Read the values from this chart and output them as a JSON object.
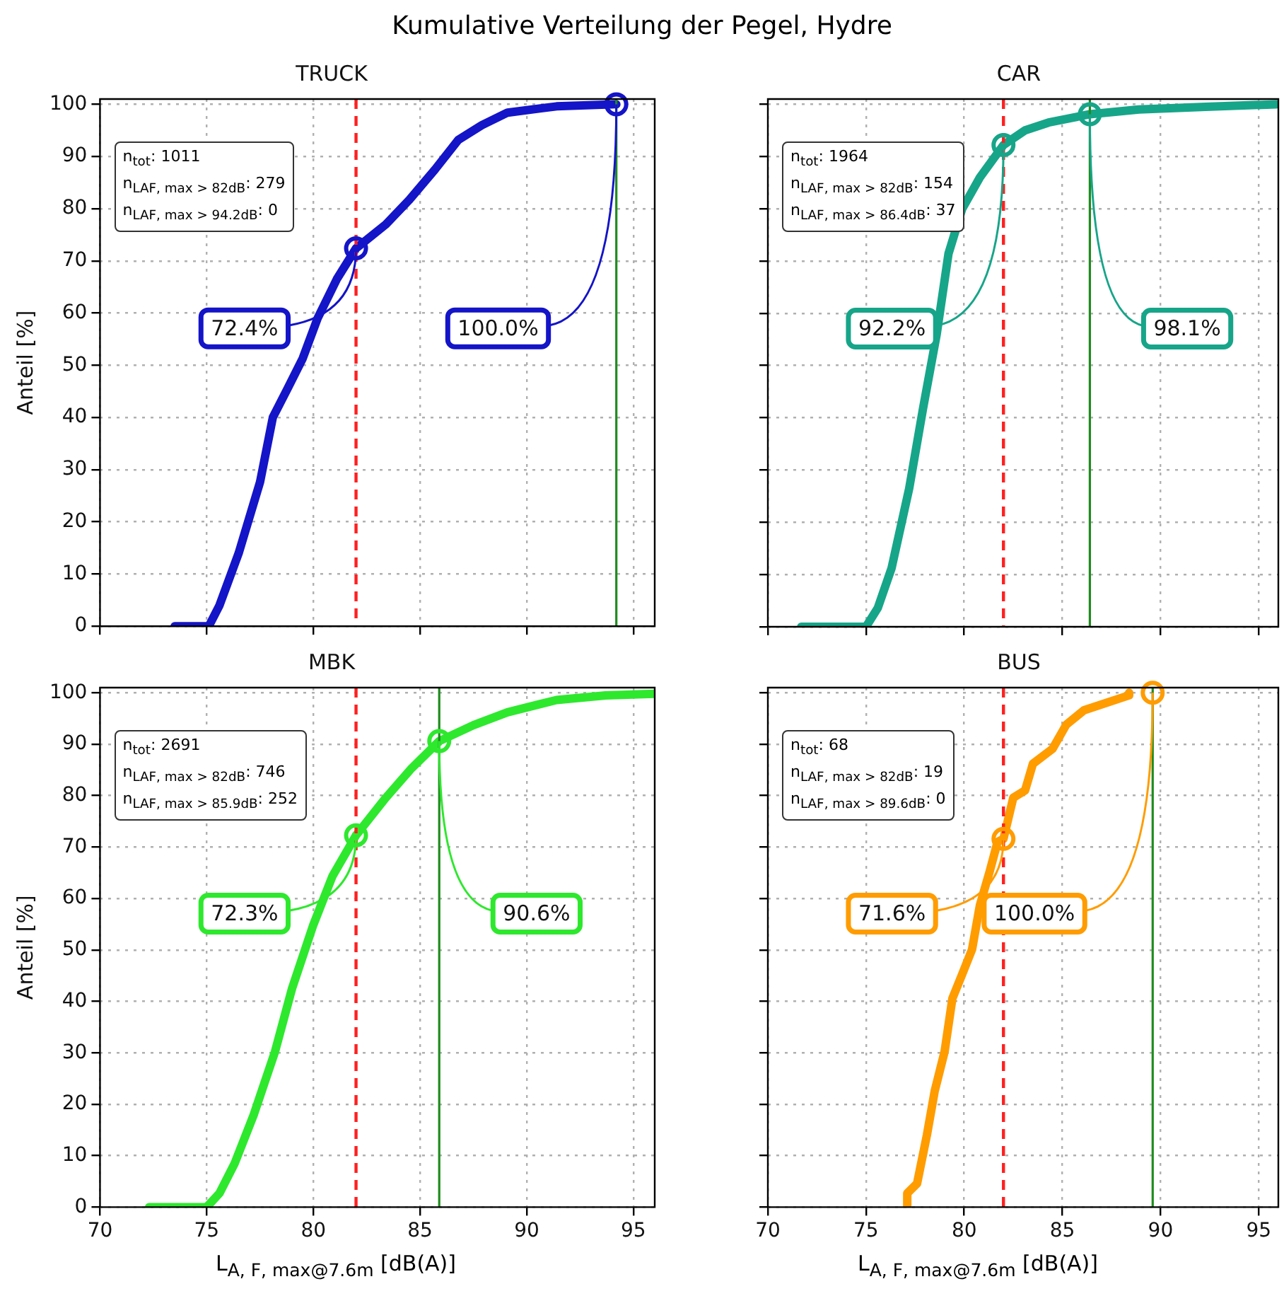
{
  "chart_data": [
    {
      "type": "line",
      "title": "Kumulative Verteilung der Pegel, Hydre",
      "subtitle": "TRUCK",
      "ylabel": "Anteil [%]",
      "xlim": [
        70,
        96
      ],
      "ylim": [
        0,
        101
      ],
      "xticks": [
        70,
        75,
        80,
        85,
        90,
        95
      ],
      "yticks": [
        0,
        10,
        20,
        30,
        40,
        50,
        60,
        70,
        80,
        90,
        100
      ],
      "grid": true,
      "tick_labels": "y",
      "series": [
        {
          "color": "#1414c8",
          "x": [
            73.5,
            75.1,
            75.6,
            76.5,
            77.5,
            78.1,
            78.8,
            79.5,
            80.2,
            81.1,
            82.0,
            83.4,
            84.5,
            85.7,
            86.8,
            87.9,
            89.1,
            91.4,
            94.2
          ],
          "values": [
            0,
            0,
            4,
            14,
            27.6,
            40,
            45.6,
            51.3,
            59,
            66.5,
            72.4,
            77,
            81.7,
            87.5,
            93.2,
            96,
            98.4,
            99.6,
            100
          ]
        }
      ],
      "ref_lines": [
        {
          "axis": "x",
          "value": 82,
          "color": "#ff2020",
          "line_style": "dashed"
        },
        {
          "axis": "x",
          "value": 94.2,
          "color": "#1f8c1f"
        }
      ],
      "annotations": [
        "n$_{tot}$: 1011",
        "n$_{LAF, max > 82dB}$: 279",
        "n$_{LAF, max > 94.2dB}$: 0",
        {
          "text": "72.4%",
          "x": 82,
          "y": 72.4
        },
        {
          "text": "100.0%",
          "x": 94.2,
          "y": 100
        }
      ]
    },
    {
      "type": "line",
      "title": "CAR",
      "xlim": [
        70,
        96
      ],
      "ylim": [
        0,
        101
      ],
      "xticks": [
        70,
        75,
        80,
        85,
        90,
        95
      ],
      "yticks": [
        0,
        10,
        20,
        30,
        40,
        50,
        60,
        70,
        80,
        90,
        100
      ],
      "grid": true,
      "tick_labels": false,
      "series": [
        {
          "color": "#17a589",
          "x": [
            71.7,
            75,
            75.6,
            76.3,
            77.2,
            77.9,
            78.6,
            79.2,
            79.9,
            80.8,
            82.0,
            83.1,
            84.3,
            86.4,
            88.9,
            92.3,
            95.9
          ],
          "values": [
            0,
            0,
            3.6,
            11.2,
            26.5,
            41.7,
            56,
            71.4,
            80,
            86,
            92.2,
            95,
            96.5,
            98.1,
            99,
            99.5,
            100
          ]
        }
      ],
      "ref_lines": [
        {
          "axis": "x",
          "value": 82,
          "color": "#ff2020",
          "line_style": "dashed"
        },
        {
          "axis": "x",
          "value": 86.4,
          "color": "#1f8c1f"
        }
      ],
      "annotations": [
        "n$_{tot}$: 1964",
        "n$_{LAF, max > 82dB}$: 154",
        "n$_{LAF, max > 86.4dB}$: 37",
        {
          "text": "92.2%",
          "x": 82,
          "y": 92.2
        },
        {
          "text": "98.1%",
          "x": 86.4,
          "y": 98.1
        }
      ]
    },
    {
      "type": "line",
      "title": "MBK",
      "xlabel": "L$_{A, F, max@7.6m}$ [dB(A)]",
      "ylabel": "Anteil [%]",
      "xlim": [
        70,
        96
      ],
      "ylim": [
        0,
        101
      ],
      "xticks": [
        70,
        75,
        80,
        85,
        90,
        95
      ],
      "yticks": [
        0,
        10,
        20,
        30,
        40,
        50,
        60,
        70,
        80,
        90,
        100
      ],
      "grid": true,
      "series": [
        {
          "color": "#2ee82e",
          "x": [
            72.3,
            75,
            75.6,
            76.3,
            77.2,
            78.2,
            79.0,
            80.0,
            80.9,
            82.0,
            83.4,
            84.6,
            85.9,
            87.5,
            89.1,
            91.4,
            93.7,
            96
          ],
          "values": [
            0,
            0,
            2.7,
            8.4,
            17.9,
            30.2,
            42.5,
            54.9,
            64.4,
            72.3,
            79.6,
            85.3,
            90.6,
            93.7,
            96.2,
            98.6,
            99.5,
            99.8
          ]
        }
      ],
      "ref_lines": [
        {
          "axis": "x",
          "value": 82,
          "color": "#ff2020",
          "line_style": "dashed"
        },
        {
          "axis": "x",
          "value": 85.9,
          "color": "#1f8c1f"
        }
      ],
      "annotations": [
        "n$_{tot}$: 2691",
        "n$_{LAF, max > 82dB}$: 746",
        "n$_{LAF, max > 85.9dB}$: 252",
        {
          "text": "72.3%",
          "x": 82,
          "y": 72.3
        },
        {
          "text": "90.6%",
          "x": 85.9,
          "y": 90.6
        }
      ]
    },
    {
      "type": "line",
      "title": "BUS",
      "xlabel": "L$_{A, F, max@7.6m}$ [dB(A)]",
      "xlim": [
        70,
        96
      ],
      "ylim": [
        0,
        101
      ],
      "xticks": [
        70,
        75,
        80,
        85,
        90,
        95
      ],
      "yticks": [
        0,
        10,
        20,
        30,
        40,
        50,
        60,
        70,
        80,
        90,
        100
      ],
      "grid": true,
      "tick_labels": "x",
      "series": [
        {
          "color": "#ff9c00",
          "x": [
            77.1,
            77.1,
            77.6,
            78.1,
            78.5,
            79.0,
            79.4,
            79.9,
            80.4,
            80.8,
            81.3,
            81.7,
            82.0,
            82.5,
            83.1,
            83.5,
            84.5,
            85.2,
            86.1,
            88.4,
            88.4
          ],
          "values": [
            0,
            2.7,
            4.6,
            14,
            22.6,
            30.2,
            40.6,
            45.3,
            50.1,
            58.7,
            65.3,
            71,
            71.6,
            79.6,
            81,
            86.2,
            89.1,
            93.8,
            96.6,
            99.5,
            100
          ]
        }
      ],
      "ref_lines": [
        {
          "axis": "x",
          "value": 82,
          "color": "#ff2020",
          "line_style": "dashed"
        },
        {
          "axis": "x",
          "value": 89.6,
          "color": "#1f8c1f"
        }
      ],
      "annotations": [
        "n$_{tot}$: 68",
        "n$_{LAF, max > 82dB}$: 19",
        "n$_{LAF, max > 89.6dB}$: 0",
        {
          "text": "71.6%",
          "x": 82,
          "y": 71.6
        },
        {
          "text": "100.0%",
          "x": 89.6,
          "y": 100
        }
      ]
    }
  ]
}
